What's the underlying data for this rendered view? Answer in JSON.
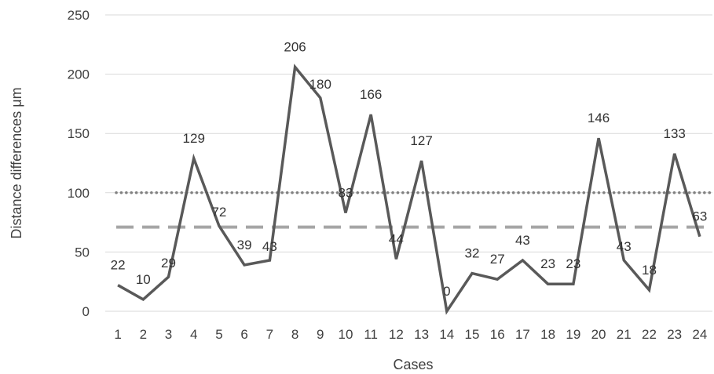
{
  "chart_data": {
    "type": "line",
    "xlabel": "Cases",
    "ylabel": "Distance differences μm",
    "categories": [
      "1",
      "2",
      "3",
      "4",
      "5",
      "6",
      "7",
      "8",
      "9",
      "10",
      "11",
      "12",
      "13",
      "14",
      "15",
      "16",
      "17",
      "18",
      "19",
      "20",
      "21",
      "22",
      "23",
      "24"
    ],
    "series": [
      {
        "values": [
          22,
          10,
          29,
          129,
          72,
          39,
          43,
          206,
          180,
          83,
          166,
          44,
          127,
          0,
          32,
          27,
          43,
          23,
          23,
          146,
          43,
          18,
          133,
          63
        ],
        "color": "#595959"
      }
    ],
    "reference_lines": [
      {
        "value": 100,
        "style": "dotted",
        "color": "#808080"
      },
      {
        "value": 71,
        "style": "dashed",
        "color": "#a6a6a6"
      }
    ],
    "ylim": [
      0,
      250
    ],
    "yticks": [
      0,
      50,
      100,
      150,
      200,
      250
    ],
    "grid": true,
    "legend": "none"
  }
}
